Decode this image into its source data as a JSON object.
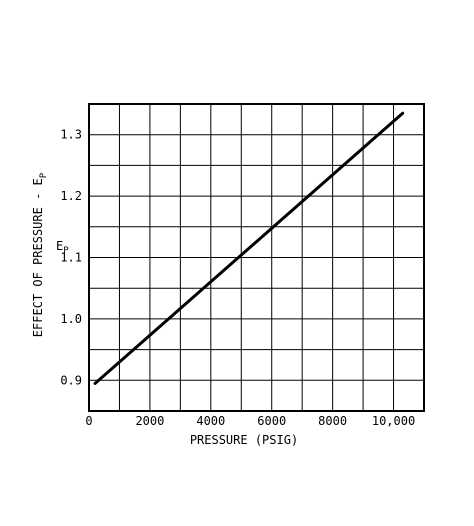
{
  "chart_data": {
    "type": "line",
    "title": "",
    "xlabel": "PRESSURE (PSIG)",
    "ylabel": "EFFECT OF PRESSURE - EP",
    "ylabel_text": "EFFECT OF PRESSURE - E",
    "ylabel_subscript": "P",
    "ylabel_symbol": "E",
    "ylabel_symbol_subscript": "P",
    "xlim": [
      0,
      11000
    ],
    "ylim": [
      0.85,
      1.35
    ],
    "x_grid_step": 1000,
    "y_grid_step": 0.05,
    "x_ticks": [
      {
        "value": 0,
        "label": "0"
      },
      {
        "value": 2000,
        "label": "2000"
      },
      {
        "value": 4000,
        "label": "4000"
      },
      {
        "value": 6000,
        "label": "6000"
      },
      {
        "value": 8000,
        "label": "8000"
      },
      {
        "value": 10000,
        "label": "10,000"
      }
    ],
    "y_ticks": [
      {
        "value": 0.9,
        "label": "0.9"
      },
      {
        "value": 1.0,
        "label": "1.0"
      },
      {
        "value": 1.1,
        "label": "1.1"
      },
      {
        "value": 1.2,
        "label": "1.2"
      },
      {
        "value": 1.3,
        "label": "1.3"
      }
    ],
    "grid": true,
    "legend": "none",
    "line_color": "#000000",
    "series": [
      {
        "x": [
          200,
          10300
        ],
        "y": [
          0.895,
          1.335
        ]
      }
    ]
  }
}
